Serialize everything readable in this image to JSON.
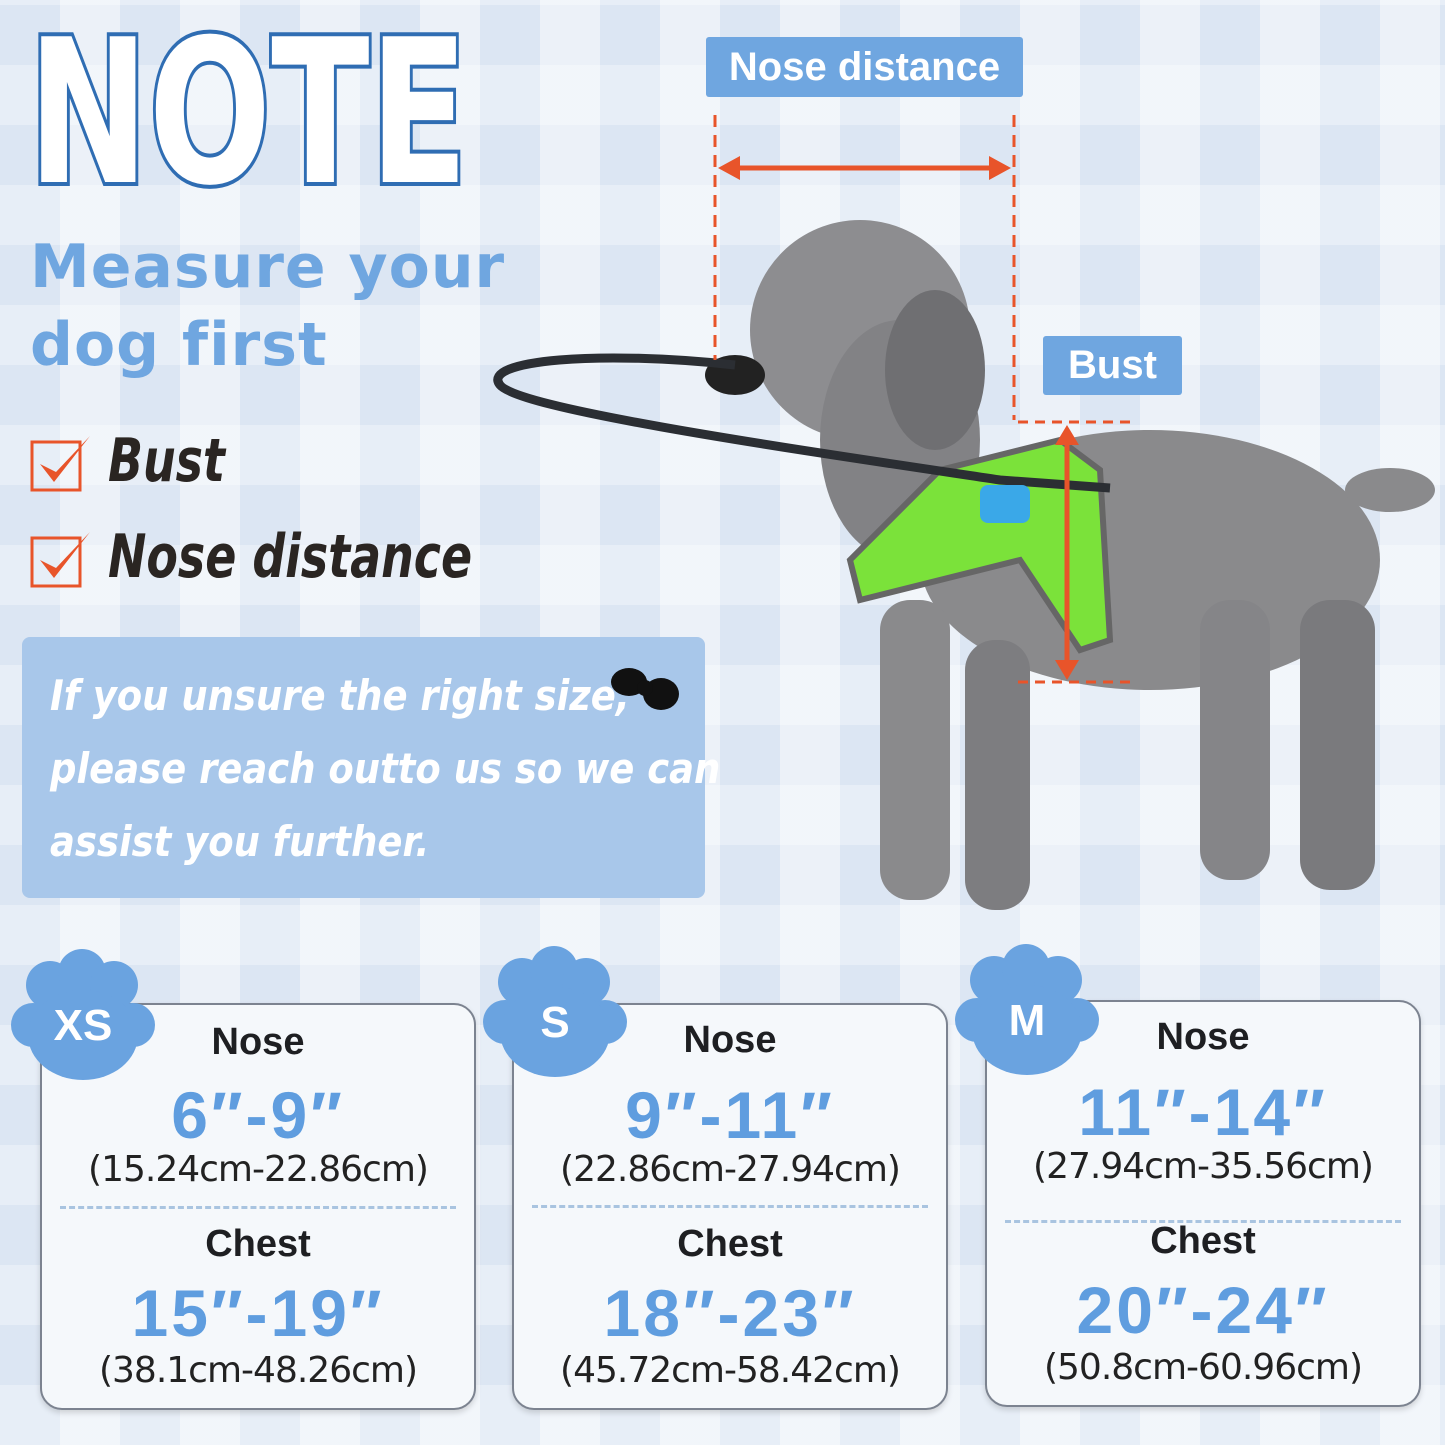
{
  "title": "NOTE",
  "subtitle_lines": [
    "Measure your",
    "dog first"
  ],
  "checklist": [
    {
      "label": "Bust",
      "checked": true
    },
    {
      "label": "Nose distance",
      "checked": true
    }
  ],
  "info_lines": [
    "If you unsure the right size,",
    "please reach outto us so we can",
    "assist you further."
  ],
  "diagram": {
    "nose_label": "Nose distance",
    "bust_label": "Bust"
  },
  "sizes": [
    {
      "size": "XS",
      "nose_label": "Nose",
      "nose_in": "6″-9″",
      "nose_cm": "(15.24cm-22.86cm)",
      "chest_label": "Chest",
      "chest_in": "15″-19″",
      "chest_cm": "(38.1cm-48.26cm)"
    },
    {
      "size": "S",
      "nose_label": "Nose",
      "nose_in": "9″-11″",
      "nose_cm": "(22.86cm-27.94cm)",
      "chest_label": "Chest",
      "chest_in": "18″-23″",
      "chest_cm": "(45.72cm-58.42cm)"
    },
    {
      "size": "M",
      "nose_label": "Nose",
      "nose_in": "11″-14″",
      "nose_cm": "(27.94cm-35.56cm)",
      "chest_label": "Chest",
      "chest_in": "20″-24″",
      "chest_cm": "(50.8cm-60.96cm)"
    }
  ],
  "colors": {
    "accent_blue": "#5f9ddf",
    "label_blue": "#6fa6e0",
    "measure_red": "#e8542a",
    "info_bg": "#a8c7ea"
  }
}
